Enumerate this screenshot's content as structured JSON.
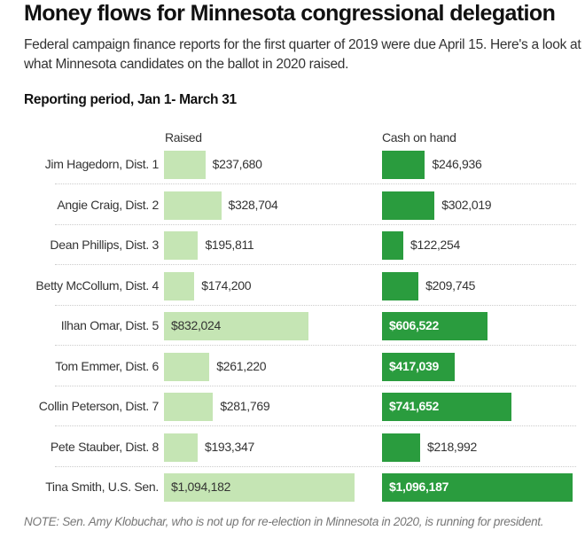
{
  "chart_data": {
    "type": "bar",
    "title": "Money flows for Minnesota congressional delegation",
    "subtitle": "Federal campaign finance reports for the first quarter of 2019 were due April 15. Here's a look at what Minnesota candidates on the ballot in 2020 raised.",
    "period_label": "Reporting period, Jan 1- March 31",
    "categories": [
      "Jim Hagedorn, Dist. 1",
      "Angie Craig, Dist. 2",
      "Dean Phillips, Dist. 3",
      "Betty McCollum, Dist. 4",
      "Ilhan Omar, Dist. 5",
      "Tom Emmer, Dist. 6",
      "Collin Peterson, Dist. 7",
      "Pete Stauber, Dist. 8",
      "Tina Smith, U.S. Sen."
    ],
    "series": [
      {
        "name": "Raised",
        "color": "#c5e5b4",
        "values": [
          237680,
          328704,
          195811,
          174200,
          832024,
          261220,
          281769,
          193347,
          1094182
        ],
        "labels": [
          "$237,680",
          "$328,704",
          "$195,811",
          "$174,200",
          "$832,024",
          "$261,220",
          "$281,769",
          "$193,347",
          "$1,094,182"
        ]
      },
      {
        "name": "Cash on hand",
        "color": "#2a9c3e",
        "values": [
          246936,
          302019,
          122254,
          209745,
          606522,
          417039,
          741652,
          218992,
          1096187
        ],
        "labels": [
          "$246,936",
          "$302,019",
          "$122,254",
          "$209,745",
          "$606,522",
          "$417,039",
          "$741,652",
          "$218,992",
          "$1,096,187"
        ]
      }
    ],
    "xlim": [
      0,
      1100000
    ],
    "note": "NOTE: Sen. Amy Klobuchar, who is not up for re-election in Minnesota in 2020, is running for president."
  }
}
